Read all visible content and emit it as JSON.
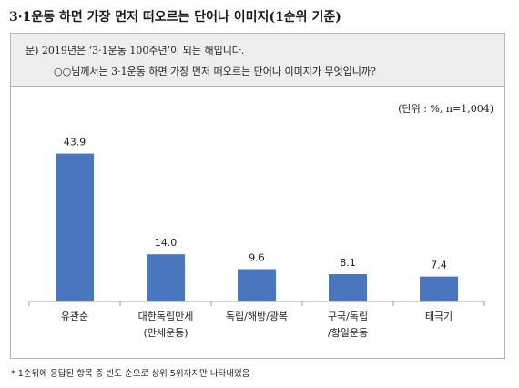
{
  "header": {
    "title": "3·1운동 하면 가장 먼저 떠오르는 단어나 이미지(1순위 기준)"
  },
  "question": {
    "line1": "문) 2019년은 ‘3·1운동 100주년’이 되는 해입니다.",
    "line2": "○○님께서는 3·1운동 하면 가장 먼저 떠오르는 단어나 이미지가 무엇입니까?"
  },
  "unit_note": "(단위 : %, n=1,004)",
  "footnote": "* 1순위에 응답된 항목 중 빈도 순으로 상위 5위까지만 나타내었음",
  "colors": {
    "bar": "#4a76bd",
    "axis": "#999999"
  },
  "chart_data": {
    "type": "bar",
    "categories": [
      [
        "유관순"
      ],
      [
        "대한독립만세",
        "(만세운동)"
      ],
      [
        "독립/해방/광복"
      ],
      [
        "구국/독립",
        "/항일운동"
      ],
      [
        "태극기"
      ]
    ],
    "values": [
      43.9,
      14.0,
      9.6,
      8.1,
      7.4
    ],
    "value_labels": [
      "43.9",
      "14.0",
      "9.6",
      "8.1",
      "7.4"
    ],
    "ylim": [
      0,
      50
    ]
  }
}
